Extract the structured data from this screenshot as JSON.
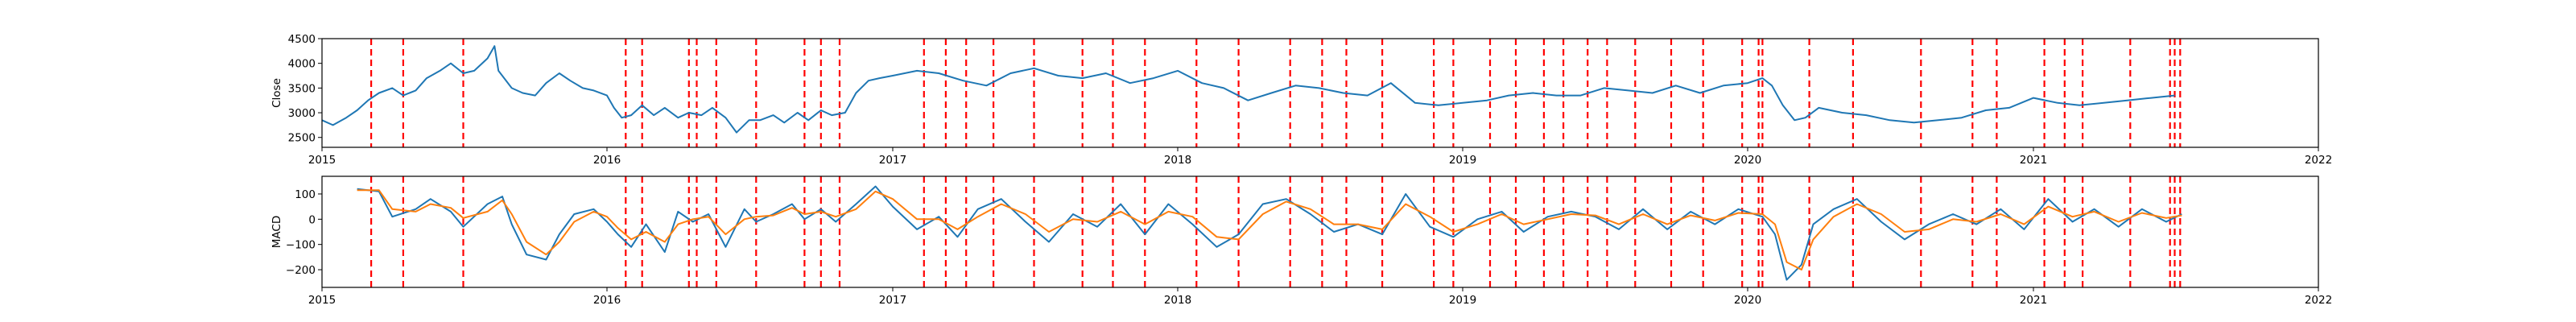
{
  "chart_data": [
    {
      "type": "line",
      "panel": "close",
      "ylabel": "Close",
      "xlim": [
        "2015-01-01",
        "2022-01-01"
      ],
      "ylim": [
        2300,
        4500
      ],
      "x_ticks": [
        "2015",
        "2016",
        "2017",
        "2018",
        "2019",
        "2020",
        "2021",
        "2022"
      ],
      "y_ticks": [
        "2500",
        "3000",
        "3500",
        "4000",
        "4500"
      ],
      "y_tick_values": [
        2500,
        3000,
        3500,
        4000,
        4500
      ],
      "grid": false,
      "colors": {
        "close": "#1f77b4",
        "events": "#ff0000"
      },
      "series": [
        {
          "x": [
            "2015-01-01",
            "2015-01-15",
            "2015-02-01",
            "2015-02-15",
            "2015-03-01",
            "2015-03-15",
            "2015-04-01",
            "2015-04-15",
            "2015-05-01",
            "2015-05-15",
            "2015-06-01",
            "2015-06-15",
            "2015-07-01",
            "2015-07-15",
            "2015-08-01",
            "2015-08-10",
            "2015-08-15",
            "2015-09-01",
            "2015-09-15",
            "2015-10-01",
            "2015-10-15",
            "2015-11-01",
            "2015-11-15",
            "2015-12-01",
            "2015-12-15",
            "2016-01-01",
            "2016-01-10",
            "2016-01-20",
            "2016-02-01",
            "2016-02-15",
            "2016-03-01",
            "2016-03-15",
            "2016-04-01",
            "2016-04-15",
            "2016-05-01",
            "2016-05-15",
            "2016-06-01",
            "2016-06-15",
            "2016-07-01",
            "2016-07-15",
            "2016-08-01",
            "2016-08-15",
            "2016-09-01",
            "2016-09-15",
            "2016-10-01",
            "2016-10-15",
            "2016-11-01",
            "2016-11-15",
            "2016-12-01",
            "2016-12-15",
            "2017-01-01",
            "2017-02-01",
            "2017-03-01",
            "2017-04-01",
            "2017-05-01",
            "2017-06-01",
            "2017-07-01",
            "2017-08-01",
            "2017-09-01",
            "2017-10-01",
            "2017-11-01",
            "2017-12-01",
            "2018-01-01",
            "2018-02-01",
            "2018-03-01",
            "2018-04-01",
            "2018-05-01",
            "2018-06-01",
            "2018-07-01",
            "2018-08-01",
            "2018-09-01",
            "2018-10-01",
            "2018-11-01",
            "2018-12-01",
            "2019-01-01",
            "2019-02-01",
            "2019-03-01",
            "2019-04-01",
            "2019-05-01",
            "2019-06-01",
            "2019-07-01",
            "2019-08-01",
            "2019-09-01",
            "2019-10-01",
            "2019-11-01",
            "2019-12-01",
            "2020-01-01",
            "2020-01-20",
            "2020-02-01",
            "2020-02-15",
            "2020-03-01",
            "2020-03-15",
            "2020-04-01",
            "2020-05-01",
            "2020-06-01",
            "2020-07-01",
            "2020-08-01",
            "2020-09-01",
            "2020-10-01",
            "2020-11-01",
            "2020-12-01",
            "2021-01-01",
            "2021-02-01",
            "2021-03-01",
            "2021-04-01",
            "2021-05-01",
            "2021-06-01",
            "2021-07-01"
          ],
          "y": [
            2850,
            2750,
            2900,
            3050,
            3250,
            3400,
            3500,
            3350,
            3450,
            3700,
            3850,
            4000,
            3800,
            3850,
            4100,
            4350,
            3850,
            3500,
            3400,
            3350,
            3600,
            3800,
            3650,
            3500,
            3450,
            3350,
            3100,
            2900,
            2950,
            3150,
            2950,
            3100,
            2900,
            3000,
            2950,
            3100,
            2900,
            2600,
            2850,
            2850,
            2950,
            2800,
            3000,
            2850,
            3050,
            2950,
            3000,
            3400,
            3650,
            3700,
            3750,
            3850,
            3800,
            3650,
            3550,
            3800,
            3900,
            3750,
            3700,
            3800,
            3600,
            3700,
            3850,
            3600,
            3500,
            3250,
            3400,
            3550,
            3500,
            3400,
            3350,
            3600,
            3200,
            3150,
            3200,
            3250,
            3350,
            3400,
            3350,
            3350,
            3500,
            3450,
            3400,
            3550,
            3400,
            3550,
            3600,
            3700,
            3550,
            3150,
            2850,
            2900,
            3100,
            3000,
            2950,
            2850,
            2800,
            2850,
            2900,
            3050,
            3100,
            3300,
            3200,
            3150,
            3200,
            3250,
            3300,
            3350
          ]
        }
      ]
    },
    {
      "type": "line",
      "panel": "macd",
      "ylabel": "MACD",
      "xlim": [
        "2015-01-01",
        "2022-01-01"
      ],
      "ylim": [
        -270,
        170
      ],
      "x_ticks": [
        "2015",
        "2016",
        "2017",
        "2018",
        "2019",
        "2020",
        "2021",
        "2022"
      ],
      "y_ticks": [
        "−200",
        "−100",
        "0",
        "100"
      ],
      "y_tick_values": [
        -200,
        -100,
        0,
        100
      ],
      "grid": false,
      "colors": {
        "macd": "#1f77b4",
        "signal": "#ff7f0e",
        "events": "#ff0000"
      },
      "series": [
        {
          "role": "macd",
          "x": [
            "2015-02-15",
            "2015-03-15",
            "2015-04-01",
            "2015-05-01",
            "2015-05-20",
            "2015-06-15",
            "2015-07-01",
            "2015-08-01",
            "2015-08-20",
            "2015-09-01",
            "2015-09-20",
            "2015-10-15",
            "2015-11-01",
            "2015-11-20",
            "2015-12-15",
            "2016-01-01",
            "2016-01-15",
            "2016-02-01",
            "2016-02-20",
            "2016-03-15",
            "2016-04-01",
            "2016-04-20",
            "2016-05-10",
            "2016-06-01",
            "2016-06-25",
            "2016-07-10",
            "2016-08-01",
            "2016-08-25",
            "2016-09-10",
            "2016-10-01",
            "2016-10-20",
            "2016-11-15",
            "2016-12-10",
            "2017-01-01",
            "2017-02-01",
            "2017-03-01",
            "2017-03-25",
            "2017-04-20",
            "2017-05-20",
            "2017-06-20",
            "2017-07-20",
            "2017-08-20",
            "2017-09-20",
            "2017-10-20",
            "2017-11-20",
            "2017-12-20",
            "2018-01-20",
            "2018-02-20",
            "2018-03-20",
            "2018-04-20",
            "2018-05-20",
            "2018-06-20",
            "2018-07-20",
            "2018-08-20",
            "2018-09-20",
            "2018-10-20",
            "2018-11-20",
            "2018-12-20",
            "2019-01-20",
            "2019-02-20",
            "2019-03-20",
            "2019-04-20",
            "2019-05-20",
            "2019-06-20",
            "2019-07-20",
            "2019-08-20",
            "2019-09-20",
            "2019-10-20",
            "2019-11-20",
            "2019-12-20",
            "2020-01-20",
            "2020-02-05",
            "2020-02-20",
            "2020-03-10",
            "2020-03-25",
            "2020-04-20",
            "2020-05-20",
            "2020-06-20",
            "2020-07-20",
            "2020-08-20",
            "2020-09-20",
            "2020-10-20",
            "2020-11-20",
            "2020-12-20",
            "2021-01-20",
            "2021-02-20",
            "2021-03-20",
            "2021-04-20",
            "2021-05-20",
            "2021-06-20",
            "2021-07-10"
          ],
          "values": [
            120,
            110,
            10,
            40,
            80,
            30,
            -30,
            60,
            90,
            -20,
            -140,
            -160,
            -60,
            20,
            40,
            -10,
            -60,
            -110,
            -20,
            -130,
            30,
            -10,
            20,
            -110,
            40,
            -10,
            20,
            60,
            0,
            40,
            -10,
            60,
            130,
            50,
            -40,
            10,
            -70,
            40,
            80,
            -10,
            -90,
            20,
            -30,
            60,
            -60,
            60,
            -20,
            -110,
            -60,
            60,
            80,
            20,
            -50,
            -20,
            -60,
            100,
            -30,
            -70,
            0,
            30,
            -50,
            10,
            30,
            10,
            -40,
            40,
            -40,
            30,
            -20,
            40,
            10,
            -60,
            -240,
            -180,
            -20,
            40,
            80,
            -10,
            -80,
            -20,
            20,
            -20,
            40,
            -40,
            80,
            -10,
            40,
            -30,
            40,
            -10,
            20
          ]
        },
        {
          "role": "signal",
          "x": [
            "2015-02-15",
            "2015-03-15",
            "2015-04-01",
            "2015-05-01",
            "2015-05-20",
            "2015-06-15",
            "2015-07-01",
            "2015-08-01",
            "2015-08-20",
            "2015-09-01",
            "2015-09-20",
            "2015-10-15",
            "2015-11-01",
            "2015-11-20",
            "2015-12-15",
            "2016-01-01",
            "2016-01-15",
            "2016-02-01",
            "2016-02-20",
            "2016-03-15",
            "2016-04-01",
            "2016-04-20",
            "2016-05-10",
            "2016-06-01",
            "2016-06-25",
            "2016-07-10",
            "2016-08-01",
            "2016-08-25",
            "2016-09-10",
            "2016-10-01",
            "2016-10-20",
            "2016-11-15",
            "2016-12-10",
            "2017-01-01",
            "2017-02-01",
            "2017-03-01",
            "2017-03-25",
            "2017-04-20",
            "2017-05-20",
            "2017-06-20",
            "2017-07-20",
            "2017-08-20",
            "2017-09-20",
            "2017-10-20",
            "2017-11-20",
            "2017-12-20",
            "2018-01-20",
            "2018-02-20",
            "2018-03-20",
            "2018-04-20",
            "2018-05-20",
            "2018-06-20",
            "2018-07-20",
            "2018-08-20",
            "2018-09-20",
            "2018-10-20",
            "2018-11-20",
            "2018-12-20",
            "2019-01-20",
            "2019-02-20",
            "2019-03-20",
            "2019-04-20",
            "2019-05-20",
            "2019-06-20",
            "2019-07-20",
            "2019-08-20",
            "2019-09-20",
            "2019-10-20",
            "2019-11-20",
            "2019-12-20",
            "2020-01-20",
            "2020-02-05",
            "2020-02-20",
            "2020-03-10",
            "2020-03-25",
            "2020-04-20",
            "2020-05-20",
            "2020-06-20",
            "2020-07-20",
            "2020-08-20",
            "2020-09-20",
            "2020-10-20",
            "2020-11-20",
            "2020-12-20",
            "2021-01-20",
            "2021-02-20",
            "2021-03-20",
            "2021-04-20",
            "2021-05-20",
            "2021-06-20",
            "2021-07-10"
          ],
          "values": [
            115,
            115,
            40,
            30,
            60,
            45,
            5,
            30,
            75,
            20,
            -90,
            -140,
            -90,
            -10,
            30,
            10,
            -35,
            -80,
            -50,
            -90,
            -20,
            0,
            10,
            -60,
            0,
            10,
            15,
            45,
            20,
            30,
            10,
            40,
            110,
            80,
            0,
            0,
            -40,
            10,
            60,
            20,
            -50,
            0,
            -10,
            30,
            -20,
            30,
            10,
            -70,
            -80,
            20,
            70,
            40,
            -20,
            -20,
            -40,
            60,
            10,
            -50,
            -20,
            20,
            -20,
            0,
            20,
            15,
            -20,
            20,
            -20,
            15,
            -5,
            25,
            20,
            -20,
            -170,
            -200,
            -80,
            10,
            60,
            20,
            -50,
            -40,
            0,
            -10,
            20,
            -20,
            50,
            10,
            30,
            -10,
            25,
            5,
            15
          ]
        }
      ]
    }
  ],
  "event_dates": [
    "2015-03-05",
    "2015-04-15",
    "2015-07-01",
    "2016-01-25",
    "2016-02-15",
    "2016-04-15",
    "2016-04-25",
    "2016-05-20",
    "2016-07-10",
    "2016-09-10",
    "2016-10-01",
    "2016-10-25",
    "2017-02-10",
    "2017-03-10",
    "2017-04-05",
    "2017-05-10",
    "2017-07-01",
    "2017-09-01",
    "2017-10-10",
    "2017-11-20",
    "2018-01-25",
    "2018-03-20",
    "2018-05-25",
    "2018-07-05",
    "2018-08-05",
    "2018-09-20",
    "2018-11-25",
    "2018-12-20",
    "2019-02-05",
    "2019-03-10",
    "2019-04-15",
    "2019-05-10",
    "2019-06-10",
    "2019-07-05",
    "2019-08-10",
    "2019-09-25",
    "2019-11-05",
    "2019-12-25",
    "2020-01-15",
    "2020-01-20",
    "2020-03-20",
    "2020-05-15",
    "2020-08-10",
    "2020-10-15",
    "2020-11-15",
    "2021-01-15",
    "2021-02-10",
    "2021-03-05",
    "2021-05-05",
    "2021-06-25",
    "2021-07-01",
    "2021-07-08"
  ]
}
